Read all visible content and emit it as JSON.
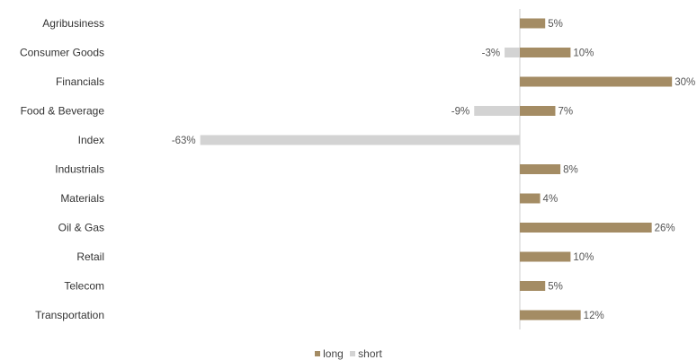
{
  "chart_data": {
    "type": "bar",
    "orientation": "horizontal",
    "categories": [
      "Agribusiness",
      "Consumer Goods",
      "Financials",
      "Food & Beverage",
      "Index",
      "Industrials",
      "Materials",
      "Oil & Gas",
      "Retail",
      "Telecom",
      "Transportation"
    ],
    "series": [
      {
        "name": "long",
        "color": "#a48c64",
        "values": [
          5,
          10,
          30,
          7,
          null,
          8,
          4,
          26,
          10,
          5,
          12
        ],
        "labels": [
          "5%",
          "10%",
          "30%",
          "7%",
          "",
          "8%",
          "4%",
          "26%",
          "10%",
          "5%",
          "12%"
        ]
      },
      {
        "name": "short",
        "color": "#d3d3d3",
        "values": [
          null,
          -3,
          null,
          -9,
          -63,
          null,
          null,
          null,
          null,
          null,
          null
        ],
        "labels": [
          "",
          "-3%",
          "",
          "-9%",
          "-63%",
          "",
          "",
          "",
          "",
          "",
          ""
        ]
      }
    ],
    "xlim": [
      -63,
      30
    ],
    "axis_color": "#cccccc",
    "legend_position": "bottom-center",
    "grid": false
  }
}
